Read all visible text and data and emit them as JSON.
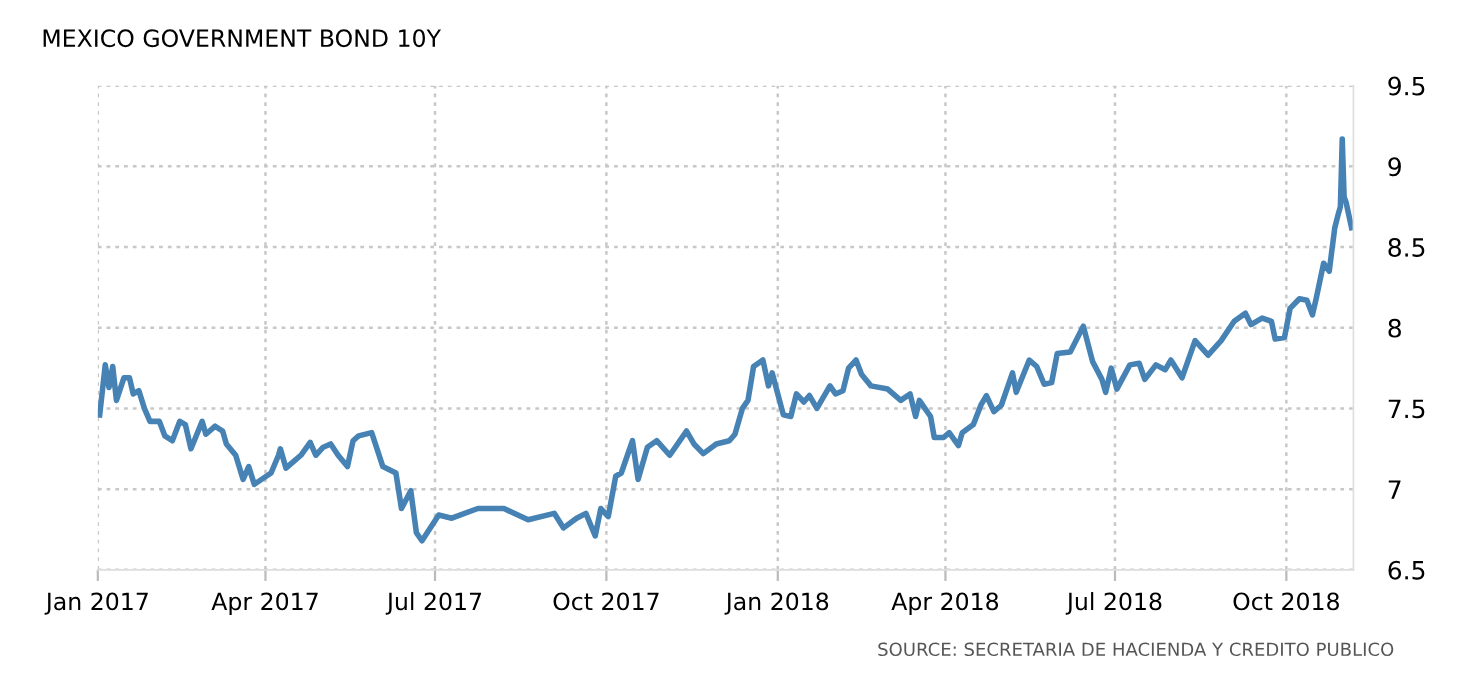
{
  "chart_data": {
    "type": "line",
    "title": "MEXICO GOVERNMENT BOND 10Y",
    "annotations": [
      "SOURCE: SECRETARIA DE HACIENDA Y CREDITO PUBLICO"
    ],
    "x": [
      "2017-01-02",
      "2017-01-05",
      "2017-01-07",
      "2017-01-09",
      "2017-01-11",
      "2017-01-15",
      "2017-01-18",
      "2017-01-20",
      "2017-01-23",
      "2017-01-26",
      "2017-01-29",
      "2017-02-03",
      "2017-02-06",
      "2017-02-10",
      "2017-02-14",
      "2017-02-17",
      "2017-02-20",
      "2017-02-26",
      "2017-02-28",
      "2017-03-05",
      "2017-03-09",
      "2017-03-11",
      "2017-03-16",
      "2017-03-20",
      "2017-03-23",
      "2017-03-26",
      "2017-04-04",
      "2017-04-08",
      "2017-04-09",
      "2017-04-12",
      "2017-04-16",
      "2017-04-20",
      "2017-04-25",
      "2017-04-28",
      "2017-05-02",
      "2017-05-06",
      "2017-05-10",
      "2017-05-15",
      "2017-05-18",
      "2017-05-21",
      "2017-05-28",
      "2017-06-03",
      "2017-06-10",
      "2017-06-13",
      "2017-06-18",
      "2017-06-21",
      "2017-06-24",
      "2017-07-03",
      "2017-07-10",
      "2017-07-24",
      "2017-08-07",
      "2017-08-20",
      "2017-09-03",
      "2017-09-08",
      "2017-09-15",
      "2017-09-20",
      "2017-09-25",
      "2017-09-28",
      "2017-10-02",
      "2017-10-06",
      "2017-10-09",
      "2017-10-15",
      "2017-10-18",
      "2017-10-23",
      "2017-10-28",
      "2017-11-04",
      "2017-11-13",
      "2017-11-17",
      "2017-11-22",
      "2017-11-29",
      "2017-12-06",
      "2017-12-09",
      "2017-12-13",
      "2017-12-16",
      "2017-12-19",
      "2017-12-24",
      "2017-12-27",
      "2017-12-29",
      "2018-01-04",
      "2018-01-08",
      "2018-01-11",
      "2018-01-15",
      "2018-01-18",
      "2018-01-22",
      "2018-01-29",
      "2018-02-01",
      "2018-02-05",
      "2018-02-08",
      "2018-02-12",
      "2018-02-15",
      "2018-02-20",
      "2018-03-01",
      "2018-03-08",
      "2018-03-13",
      "2018-03-16",
      "2018-03-18",
      "2018-03-24",
      "2018-03-26",
      "2018-03-31",
      "2018-04-03",
      "2018-04-08",
      "2018-04-10",
      "2018-04-16",
      "2018-04-20",
      "2018-04-23",
      "2018-04-27",
      "2018-05-01",
      "2018-05-07",
      "2018-05-09",
      "2018-05-16",
      "2018-05-20",
      "2018-05-24",
      "2018-05-28",
      "2018-05-31",
      "2018-06-07",
      "2018-06-14",
      "2018-06-19",
      "2018-06-24",
      "2018-06-26",
      "2018-06-29",
      "2018-07-02",
      "2018-07-09",
      "2018-07-14",
      "2018-07-17",
      "2018-07-23",
      "2018-07-28",
      "2018-07-31",
      "2018-08-06",
      "2018-08-13",
      "2018-08-20",
      "2018-08-27",
      "2018-09-03",
      "2018-09-09",
      "2018-09-12",
      "2018-09-18",
      "2018-09-23",
      "2018-09-25",
      "2018-09-30",
      "2018-10-03",
      "2018-10-08",
      "2018-10-12",
      "2018-10-15",
      "2018-10-17",
      "2018-10-21",
      "2018-10-24",
      "2018-10-27",
      "2018-10-29",
      "2018-10-30",
      "2018-10-31",
      "2018-11-01",
      "2018-11-02",
      "2018-11-05"
    ],
    "series": [
      {
        "color": "#4682b4",
        "values": [
          7.46,
          7.77,
          7.63,
          7.76,
          7.55,
          7.69,
          7.69,
          7.59,
          7.61,
          7.5,
          7.42,
          7.42,
          7.33,
          7.3,
          7.42,
          7.4,
          7.25,
          7.42,
          7.34,
          7.39,
          7.36,
          7.28,
          7.21,
          7.06,
          7.14,
          7.03,
          7.1,
          7.21,
          7.25,
          7.13,
          7.17,
          7.21,
          7.29,
          7.21,
          7.26,
          7.28,
          7.21,
          7.14,
          7.3,
          7.33,
          7.35,
          7.14,
          7.1,
          6.88,
          6.99,
          6.73,
          6.68,
          6.84,
          6.82,
          6.88,
          6.88,
          6.81,
          6.85,
          6.76,
          6.82,
          6.85,
          6.71,
          6.88,
          6.83,
          7.08,
          7.1,
          7.3,
          7.06,
          7.26,
          7.3,
          7.21,
          7.36,
          7.28,
          7.22,
          7.28,
          7.3,
          7.34,
          7.5,
          7.55,
          7.76,
          7.8,
          7.64,
          7.72,
          7.46,
          7.45,
          7.59,
          7.54,
          7.58,
          7.5,
          7.64,
          7.59,
          7.61,
          7.75,
          7.8,
          7.71,
          7.64,
          7.62,
          7.55,
          7.59,
          7.45,
          7.55,
          7.45,
          7.32,
          7.32,
          7.35,
          7.27,
          7.35,
          7.4,
          7.52,
          7.58,
          7.48,
          7.52,
          7.72,
          7.6,
          7.8,
          7.76,
          7.65,
          7.66,
          7.84,
          7.85,
          8.01,
          7.79,
          7.68,
          7.6,
          7.75,
          7.62,
          7.77,
          7.78,
          7.68,
          7.77,
          7.74,
          7.8,
          7.69,
          7.92,
          7.83,
          7.92,
          8.04,
          8.09,
          8.02,
          8.06,
          8.04,
          7.93,
          7.94,
          8.12,
          8.18,
          8.17,
          8.08,
          8.18,
          8.4,
          8.35,
          8.62,
          8.71,
          8.75,
          9.17,
          8.81,
          8.78,
          8.62
        ]
      }
    ],
    "xlim": [
      "2017-01-01",
      "2018-11-06"
    ],
    "xticks": [
      {
        "value": "2017-01-01",
        "label": "Jan 2017"
      },
      {
        "value": "2017-04-01",
        "label": "Apr 2017"
      },
      {
        "value": "2017-07-01",
        "label": "Jul 2017"
      },
      {
        "value": "2017-10-01",
        "label": "Oct 2017"
      },
      {
        "value": "2018-01-01",
        "label": "Jan 2018"
      },
      {
        "value": "2018-04-01",
        "label": "Apr 2018"
      },
      {
        "value": "2018-07-01",
        "label": "Jul 2018"
      },
      {
        "value": "2018-10-01",
        "label": "Oct 2018"
      }
    ],
    "ylim": [
      6.5,
      9.5
    ],
    "yticks": [
      6.5,
      7,
      7.5,
      8,
      8.5,
      9,
      9.5
    ],
    "grid": true
  }
}
